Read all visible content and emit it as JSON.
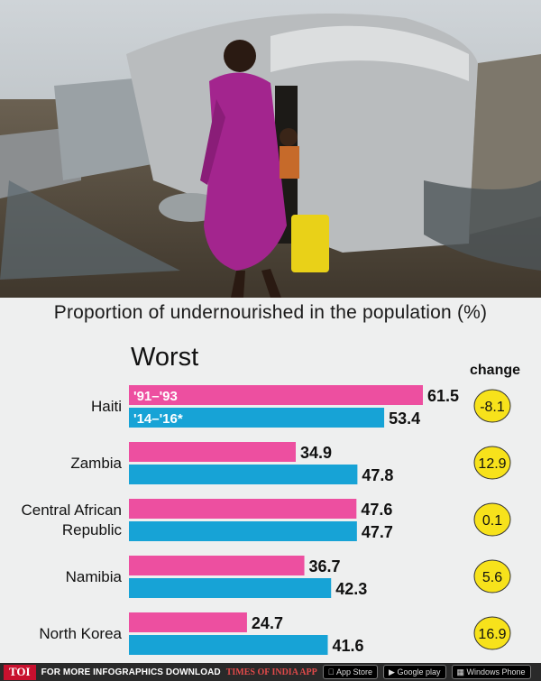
{
  "chart_data": {
    "type": "bar",
    "title": "Proportion of undernourished in the population (%)",
    "group_label": "Worst",
    "change_header": "change",
    "series": [
      {
        "name": "'91–'93",
        "color": "#ed4fa0",
        "values": [
          61.5,
          34.9,
          47.6,
          36.7,
          24.7
        ]
      },
      {
        "name": "'14–'16*",
        "color": "#17a3d6",
        "values": [
          53.4,
          47.8,
          47.7,
          42.3,
          41.6
        ]
      }
    ],
    "categories": [
      {
        "lines": [
          "Haiti"
        ],
        "change": "-8.1"
      },
      {
        "lines": [
          "Zambia"
        ],
        "change": "12.9"
      },
      {
        "lines": [
          "Central African",
          "Republic"
        ],
        "change": "0.1"
      },
      {
        "lines": [
          "Namibia"
        ],
        "change": "5.6"
      },
      {
        "lines": [
          "North Korea"
        ],
        "change": "16.9"
      }
    ],
    "change_circle_color": "#f7e21b",
    "ylim": [
      0,
      61.5
    ]
  },
  "footer": {
    "badge": "TOI",
    "text": "FOR MORE  INFOGRAPHICS DOWNLOAD",
    "app": "TIMES OF INDIA  APP",
    "store1": "App Store",
    "store2": "Google play",
    "store3": "Windows Phone"
  }
}
